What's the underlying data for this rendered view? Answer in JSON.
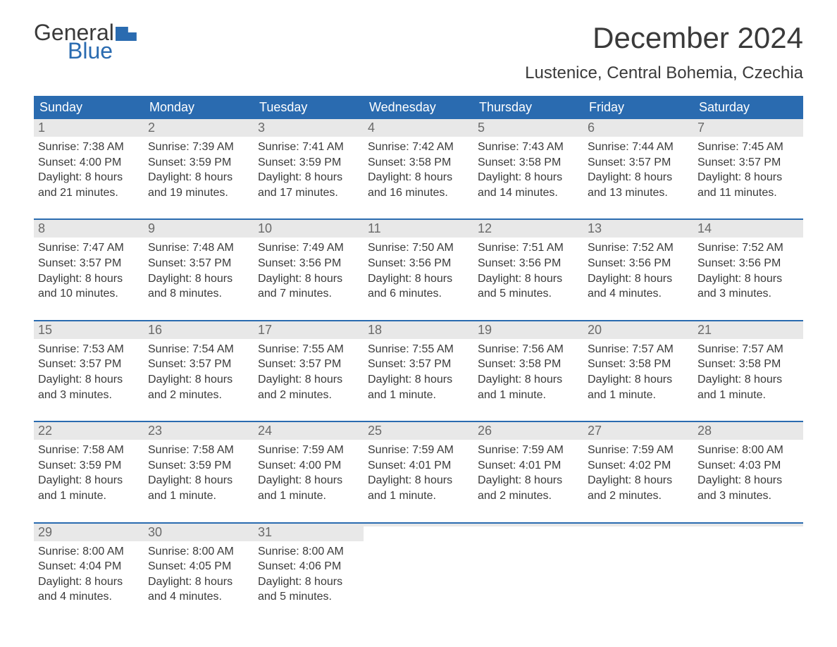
{
  "logo": {
    "word1": "General",
    "word2": "Blue"
  },
  "title": "December 2024",
  "location": "Lustenice, Central Bohemia, Czechia",
  "colors": {
    "brand_blue": "#2a6bb0",
    "header_bg": "#2a6bb0",
    "daynum_bg": "#e8e8e8",
    "text": "#3a3a3a",
    "daynum_text": "#6a6a6a",
    "bg": "#ffffff"
  },
  "weekdays": [
    "Sunday",
    "Monday",
    "Tuesday",
    "Wednesday",
    "Thursday",
    "Friday",
    "Saturday"
  ],
  "weeks": [
    [
      {
        "n": "1",
        "sunrise": "Sunrise: 7:38 AM",
        "sunset": "Sunset: 4:00 PM",
        "d1": "Daylight: 8 hours",
        "d2": "and 21 minutes."
      },
      {
        "n": "2",
        "sunrise": "Sunrise: 7:39 AM",
        "sunset": "Sunset: 3:59 PM",
        "d1": "Daylight: 8 hours",
        "d2": "and 19 minutes."
      },
      {
        "n": "3",
        "sunrise": "Sunrise: 7:41 AM",
        "sunset": "Sunset: 3:59 PM",
        "d1": "Daylight: 8 hours",
        "d2": "and 17 minutes."
      },
      {
        "n": "4",
        "sunrise": "Sunrise: 7:42 AM",
        "sunset": "Sunset: 3:58 PM",
        "d1": "Daylight: 8 hours",
        "d2": "and 16 minutes."
      },
      {
        "n": "5",
        "sunrise": "Sunrise: 7:43 AM",
        "sunset": "Sunset: 3:58 PM",
        "d1": "Daylight: 8 hours",
        "d2": "and 14 minutes."
      },
      {
        "n": "6",
        "sunrise": "Sunrise: 7:44 AM",
        "sunset": "Sunset: 3:57 PM",
        "d1": "Daylight: 8 hours",
        "d2": "and 13 minutes."
      },
      {
        "n": "7",
        "sunrise": "Sunrise: 7:45 AM",
        "sunset": "Sunset: 3:57 PM",
        "d1": "Daylight: 8 hours",
        "d2": "and 11 minutes."
      }
    ],
    [
      {
        "n": "8",
        "sunrise": "Sunrise: 7:47 AM",
        "sunset": "Sunset: 3:57 PM",
        "d1": "Daylight: 8 hours",
        "d2": "and 10 minutes."
      },
      {
        "n": "9",
        "sunrise": "Sunrise: 7:48 AM",
        "sunset": "Sunset: 3:57 PM",
        "d1": "Daylight: 8 hours",
        "d2": "and 8 minutes."
      },
      {
        "n": "10",
        "sunrise": "Sunrise: 7:49 AM",
        "sunset": "Sunset: 3:56 PM",
        "d1": "Daylight: 8 hours",
        "d2": "and 7 minutes."
      },
      {
        "n": "11",
        "sunrise": "Sunrise: 7:50 AM",
        "sunset": "Sunset: 3:56 PM",
        "d1": "Daylight: 8 hours",
        "d2": "and 6 minutes."
      },
      {
        "n": "12",
        "sunrise": "Sunrise: 7:51 AM",
        "sunset": "Sunset: 3:56 PM",
        "d1": "Daylight: 8 hours",
        "d2": "and 5 minutes."
      },
      {
        "n": "13",
        "sunrise": "Sunrise: 7:52 AM",
        "sunset": "Sunset: 3:56 PM",
        "d1": "Daylight: 8 hours",
        "d2": "and 4 minutes."
      },
      {
        "n": "14",
        "sunrise": "Sunrise: 7:52 AM",
        "sunset": "Sunset: 3:56 PM",
        "d1": "Daylight: 8 hours",
        "d2": "and 3 minutes."
      }
    ],
    [
      {
        "n": "15",
        "sunrise": "Sunrise: 7:53 AM",
        "sunset": "Sunset: 3:57 PM",
        "d1": "Daylight: 8 hours",
        "d2": "and 3 minutes."
      },
      {
        "n": "16",
        "sunrise": "Sunrise: 7:54 AM",
        "sunset": "Sunset: 3:57 PM",
        "d1": "Daylight: 8 hours",
        "d2": "and 2 minutes."
      },
      {
        "n": "17",
        "sunrise": "Sunrise: 7:55 AM",
        "sunset": "Sunset: 3:57 PM",
        "d1": "Daylight: 8 hours",
        "d2": "and 2 minutes."
      },
      {
        "n": "18",
        "sunrise": "Sunrise: 7:55 AM",
        "sunset": "Sunset: 3:57 PM",
        "d1": "Daylight: 8 hours",
        "d2": "and 1 minute."
      },
      {
        "n": "19",
        "sunrise": "Sunrise: 7:56 AM",
        "sunset": "Sunset: 3:58 PM",
        "d1": "Daylight: 8 hours",
        "d2": "and 1 minute."
      },
      {
        "n": "20",
        "sunrise": "Sunrise: 7:57 AM",
        "sunset": "Sunset: 3:58 PM",
        "d1": "Daylight: 8 hours",
        "d2": "and 1 minute."
      },
      {
        "n": "21",
        "sunrise": "Sunrise: 7:57 AM",
        "sunset": "Sunset: 3:58 PM",
        "d1": "Daylight: 8 hours",
        "d2": "and 1 minute."
      }
    ],
    [
      {
        "n": "22",
        "sunrise": "Sunrise: 7:58 AM",
        "sunset": "Sunset: 3:59 PM",
        "d1": "Daylight: 8 hours",
        "d2": "and 1 minute."
      },
      {
        "n": "23",
        "sunrise": "Sunrise: 7:58 AM",
        "sunset": "Sunset: 3:59 PM",
        "d1": "Daylight: 8 hours",
        "d2": "and 1 minute."
      },
      {
        "n": "24",
        "sunrise": "Sunrise: 7:59 AM",
        "sunset": "Sunset: 4:00 PM",
        "d1": "Daylight: 8 hours",
        "d2": "and 1 minute."
      },
      {
        "n": "25",
        "sunrise": "Sunrise: 7:59 AM",
        "sunset": "Sunset: 4:01 PM",
        "d1": "Daylight: 8 hours",
        "d2": "and 1 minute."
      },
      {
        "n": "26",
        "sunrise": "Sunrise: 7:59 AM",
        "sunset": "Sunset: 4:01 PM",
        "d1": "Daylight: 8 hours",
        "d2": "and 2 minutes."
      },
      {
        "n": "27",
        "sunrise": "Sunrise: 7:59 AM",
        "sunset": "Sunset: 4:02 PM",
        "d1": "Daylight: 8 hours",
        "d2": "and 2 minutes."
      },
      {
        "n": "28",
        "sunrise": "Sunrise: 8:00 AM",
        "sunset": "Sunset: 4:03 PM",
        "d1": "Daylight: 8 hours",
        "d2": "and 3 minutes."
      }
    ],
    [
      {
        "n": "29",
        "sunrise": "Sunrise: 8:00 AM",
        "sunset": "Sunset: 4:04 PM",
        "d1": "Daylight: 8 hours",
        "d2": "and 4 minutes."
      },
      {
        "n": "30",
        "sunrise": "Sunrise: 8:00 AM",
        "sunset": "Sunset: 4:05 PM",
        "d1": "Daylight: 8 hours",
        "d2": "and 4 minutes."
      },
      {
        "n": "31",
        "sunrise": "Sunrise: 8:00 AM",
        "sunset": "Sunset: 4:06 PM",
        "d1": "Daylight: 8 hours",
        "d2": "and 5 minutes."
      },
      {
        "empty": true
      },
      {
        "empty": true
      },
      {
        "empty": true
      },
      {
        "empty": true
      }
    ]
  ]
}
